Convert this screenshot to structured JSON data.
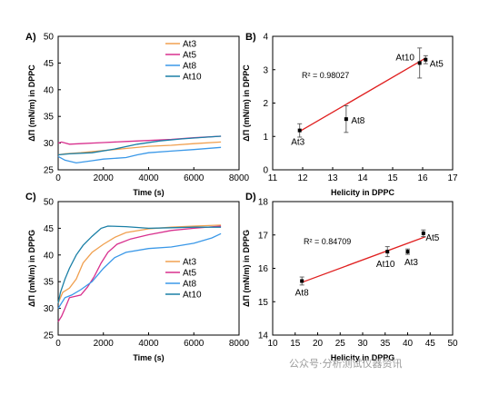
{
  "watermark": "公众号·分析测试仪器资讯",
  "chart_data": [
    {
      "panel": "A)",
      "type": "line",
      "xlabel": "Time (s)",
      "ylabel": "ΔΠ (mN/m) in DPPC",
      "xlim": [
        0,
        8000
      ],
      "ylim": [
        25,
        50
      ],
      "xticks": [
        0,
        2000,
        4000,
        6000,
        8000
      ],
      "yticks": [
        25,
        30,
        35,
        40,
        45,
        50
      ],
      "legend_position": "top-right",
      "series": [
        {
          "name": "At3",
          "color": "#f0a050",
          "points": [
            [
              0,
              27.8
            ],
            [
              300,
              28.0
            ],
            [
              1000,
              28.2
            ],
            [
              2000,
              28.6
            ],
            [
              3000,
              29.0
            ],
            [
              4000,
              29.4
            ],
            [
              5000,
              29.6
            ],
            [
              6000,
              29.9
            ],
            [
              7200,
              30.2
            ]
          ]
        },
        {
          "name": "At5",
          "color": "#d8308e",
          "points": [
            [
              0,
              30.0
            ],
            [
              150,
              30.2
            ],
            [
              500,
              29.8
            ],
            [
              1000,
              29.9
            ],
            [
              2000,
              30.1
            ],
            [
              3000,
              30.3
            ],
            [
              4000,
              30.5
            ],
            [
              5000,
              30.7
            ],
            [
              6000,
              31.0
            ],
            [
              7200,
              31.3
            ]
          ]
        },
        {
          "name": "At8",
          "color": "#3a98e8",
          "points": [
            [
              0,
              27.5
            ],
            [
              300,
              26.8
            ],
            [
              800,
              26.3
            ],
            [
              1500,
              26.7
            ],
            [
              2000,
              27.0
            ],
            [
              3000,
              27.3
            ],
            [
              3500,
              27.8
            ],
            [
              4000,
              28.2
            ],
            [
              5000,
              28.5
            ],
            [
              6000,
              28.8
            ],
            [
              7200,
              29.2
            ]
          ]
        },
        {
          "name": "At10",
          "color": "#1a7fa6",
          "points": [
            [
              0,
              27.8
            ],
            [
              500,
              28.0
            ],
            [
              1500,
              28.2
            ],
            [
              2500,
              28.9
            ],
            [
              3500,
              29.8
            ],
            [
              4500,
              30.4
            ],
            [
              5500,
              30.8
            ],
            [
              6500,
              31.1
            ],
            [
              7200,
              31.3
            ]
          ]
        }
      ]
    },
    {
      "panel": "B)",
      "type": "scatter",
      "xlabel": "Helicity  in DPPC",
      "ylabel": "ΔΠ (mN/m) in DPPC",
      "xlim": [
        11,
        17
      ],
      "ylim": [
        0,
        4
      ],
      "xticks": [
        11,
        12,
        13,
        14,
        15,
        16,
        17
      ],
      "yticks": [
        0,
        1,
        2,
        3,
        4
      ],
      "annotation": "R² = 0.98027",
      "points": [
        {
          "label": "At3",
          "x": 11.9,
          "y": 1.18,
          "err": 0.2
        },
        {
          "label": "At8",
          "x": 13.45,
          "y": 1.52,
          "err": 0.4
        },
        {
          "label": "At10",
          "x": 15.9,
          "y": 3.2,
          "err": 0.45
        },
        {
          "label": "At5",
          "x": 16.1,
          "y": 3.3,
          "err": 0.12
        }
      ],
      "fit": {
        "x": [
          11.9,
          16.1
        ],
        "y": [
          1.15,
          3.35
        ],
        "color": "#e02020"
      }
    },
    {
      "panel": "C)",
      "type": "line",
      "xlabel": "Time (s)",
      "ylabel": "ΔΠ (mN/m) in DPPG",
      "xlim": [
        0,
        8000
      ],
      "ylim": [
        25,
        50
      ],
      "xticks": [
        0,
        2000,
        4000,
        6000,
        8000
      ],
      "yticks": [
        25,
        30,
        35,
        40,
        45,
        50
      ],
      "legend_position": "bottom-right",
      "series": [
        {
          "name": "At3",
          "color": "#f0a050",
          "points": [
            [
              0,
              31.0
            ],
            [
              200,
              33.0
            ],
            [
              500,
              33.8
            ],
            [
              800,
              35.5
            ],
            [
              1100,
              38.5
            ],
            [
              1500,
              40.5
            ],
            [
              2000,
              42.0
            ],
            [
              2500,
              43.3
            ],
            [
              3000,
              44.2
            ],
            [
              4000,
              44.9
            ],
            [
              5000,
              45.2
            ],
            [
              6000,
              45.4
            ],
            [
              7200,
              45.6
            ]
          ]
        },
        {
          "name": "At5",
          "color": "#d8308e",
          "points": [
            [
              0,
              27.5
            ],
            [
              150,
              28.5
            ],
            [
              300,
              30.0
            ],
            [
              500,
              32.0
            ],
            [
              1000,
              32.5
            ],
            [
              1300,
              34.0
            ],
            [
              1600,
              36.0
            ],
            [
              1900,
              38.5
            ],
            [
              2200,
              40.5
            ],
            [
              2600,
              42.0
            ],
            [
              3200,
              43.0
            ],
            [
              4000,
              43.8
            ],
            [
              5000,
              44.6
            ],
            [
              6000,
              45.0
            ],
            [
              7200,
              45.4
            ]
          ]
        },
        {
          "name": "At8",
          "color": "#3a98e8",
          "points": [
            [
              0,
              30.0
            ],
            [
              300,
              32.0
            ],
            [
              600,
              32.5
            ],
            [
              1000,
              33.5
            ],
            [
              1500,
              35.0
            ],
            [
              2000,
              37.5
            ],
            [
              2500,
              39.5
            ],
            [
              3000,
              40.5
            ],
            [
              4000,
              41.2
            ],
            [
              5000,
              41.5
            ],
            [
              6000,
              42.2
            ],
            [
              6800,
              43.2
            ],
            [
              7200,
              44.0
            ]
          ]
        },
        {
          "name": "At10",
          "color": "#1a7fa6",
          "points": [
            [
              0,
              31.0
            ],
            [
              100,
              33.0
            ],
            [
              300,
              35.5
            ],
            [
              500,
              37.5
            ],
            [
              800,
              40.0
            ],
            [
              1100,
              41.8
            ],
            [
              1500,
              43.5
            ],
            [
              1900,
              45.0
            ],
            [
              2200,
              45.4
            ],
            [
              3000,
              45.3
            ],
            [
              4000,
              45.0
            ],
            [
              5000,
              45.1
            ],
            [
              6000,
              45.2
            ],
            [
              7200,
              45.2
            ]
          ]
        }
      ]
    },
    {
      "panel": "D)",
      "type": "scatter",
      "xlabel": "Helicity in DPPG",
      "ylabel": "ΔΠ (mN/m) in DPPG",
      "xlim": [
        10,
        50
      ],
      "ylim": [
        14,
        18
      ],
      "xticks": [
        10,
        15,
        20,
        25,
        30,
        35,
        40,
        45,
        50
      ],
      "yticks": [
        14,
        15,
        16,
        17,
        18
      ],
      "annotation": "R² = 0.84709",
      "points": [
        {
          "label": "At8",
          "x": 16.5,
          "y": 15.62,
          "err": 0.12
        },
        {
          "label": "At10",
          "x": 35.5,
          "y": 16.5,
          "err": 0.15
        },
        {
          "label": "At3",
          "x": 40.0,
          "y": 16.5,
          "err": 0.08
        },
        {
          "label": "At5",
          "x": 43.5,
          "y": 17.05,
          "err": 0.1
        }
      ],
      "fit": {
        "x": [
          16.5,
          44.0
        ],
        "y": [
          15.58,
          16.95
        ],
        "color": "#e02020"
      }
    }
  ]
}
